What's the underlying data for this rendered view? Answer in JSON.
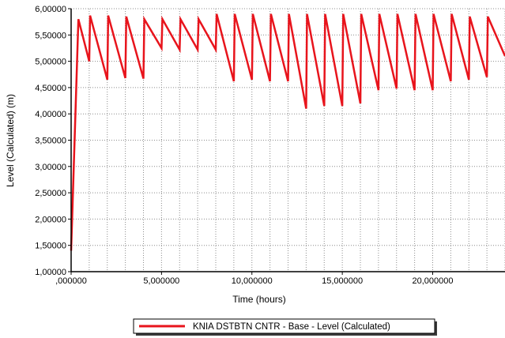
{
  "chart_data": {
    "type": "line",
    "title": "",
    "xlabel": "Time (hours)",
    "ylabel": "Level (Calculated) (m)",
    "xlim": [
      0,
      24
    ],
    "ylim": [
      1.0,
      6.0
    ],
    "grid": true,
    "legend_placement": "bottom-center",
    "x_tick_labels": [
      ",000000",
      "5,000000",
      "10,000000",
      "15,000000",
      "20,000000"
    ],
    "y_tick_labels": [
      "1,00000",
      "1,50000",
      "2,00000",
      "2,50000",
      "3,00000",
      "3,50000",
      "4,00000",
      "4,50000",
      "5,00000",
      "5,50000",
      "6,00000"
    ],
    "series": [
      {
        "name": "KNIA DSTBTN CNTR - Base - Level (Calculated)",
        "color": "#e8141c",
        "x": [
          0.0,
          0.4,
          1.0,
          1.05,
          2.0,
          2.05,
          3.0,
          3.05,
          4.0,
          4.05,
          5.0,
          5.05,
          6.0,
          6.05,
          7.0,
          7.05,
          8.0,
          8.05,
          9.0,
          9.05,
          10.0,
          10.05,
          11.0,
          11.05,
          12.0,
          12.05,
          13.0,
          13.05,
          14.0,
          14.05,
          15.0,
          15.05,
          16.0,
          16.05,
          17.0,
          17.05,
          18.0,
          18.05,
          19.0,
          19.05,
          20.0,
          20.05,
          21.0,
          21.05,
          22.0,
          22.05,
          23.0,
          23.05,
          24.0
        ],
        "y": [
          1.4,
          5.8,
          5.0,
          5.87,
          4.65,
          5.87,
          4.68,
          5.85,
          4.67,
          5.8,
          5.25,
          5.8,
          5.22,
          5.8,
          5.22,
          5.8,
          5.22,
          5.9,
          4.62,
          5.9,
          4.65,
          5.9,
          4.62,
          5.9,
          4.62,
          5.9,
          4.1,
          5.9,
          4.15,
          5.9,
          4.15,
          5.9,
          4.2,
          5.9,
          4.45,
          5.9,
          4.48,
          5.9,
          4.45,
          5.9,
          4.45,
          5.9,
          4.62,
          5.9,
          4.65,
          5.85,
          4.7,
          5.85,
          5.1
        ]
      }
    ]
  }
}
